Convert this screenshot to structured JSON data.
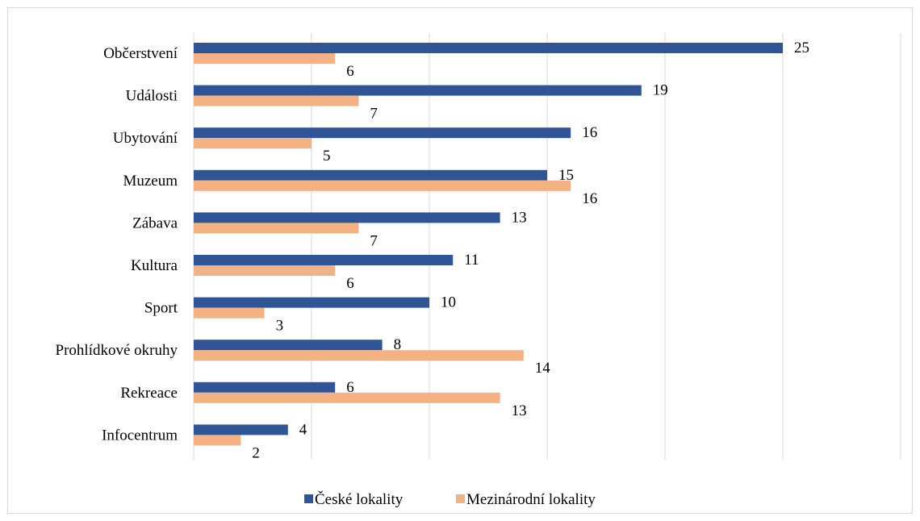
{
  "chart_data": {
    "type": "bar",
    "orientation": "horizontal",
    "title": "",
    "xlabel": "",
    "ylabel": "",
    "categories": [
      "Občerstvení",
      "Události",
      "Ubytování",
      "Muzeum",
      "Zábava",
      "Kultura",
      "Sport",
      "Prohlídkové okruhy",
      "Rekreace",
      "Infocentrum"
    ],
    "series": [
      {
        "name": "České lokality",
        "color": "#2f5597",
        "values": [
          25,
          19,
          16,
          15,
          13,
          11,
          10,
          8,
          6,
          4
        ]
      },
      {
        "name": "Mezinárodní lokality",
        "color": "#f4b183",
        "values": [
          6,
          7,
          5,
          16,
          7,
          6,
          3,
          14,
          13,
          2
        ]
      }
    ],
    "xlim": [
      0,
      30
    ],
    "grid": true,
    "data_labels": true,
    "legend": "bottom"
  }
}
